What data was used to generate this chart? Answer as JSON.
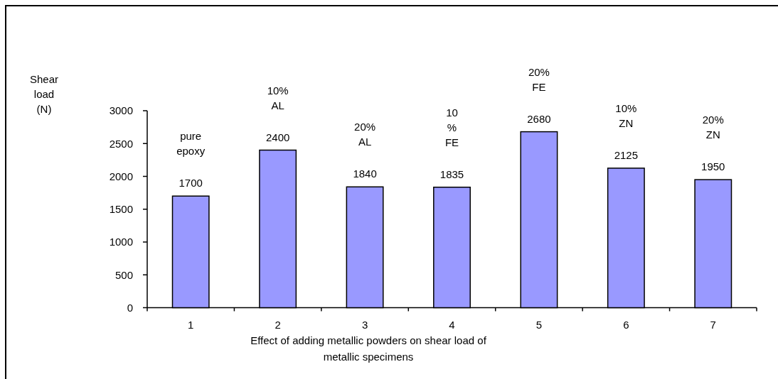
{
  "chart_data": {
    "type": "bar",
    "categories": [
      "1",
      "2",
      "3",
      "4",
      "5",
      "6",
      "7"
    ],
    "values": [
      1700,
      2400,
      1840,
      1835,
      2680,
      2125,
      1950
    ],
    "color": "#9999ff",
    "ylim": [
      0,
      3000
    ],
    "yticks": [
      0,
      500,
      1000,
      1500,
      2000,
      2500,
      3000
    ],
    "ylabel": "Shear load (N)",
    "xlabel": "Effect of adding metallic powders on shear load of metallic specimens",
    "data_labels": true,
    "annotations": [
      "pure\nepoxy",
      "10%\nAL",
      "20%\nAL",
      "10\n%\nFE",
      "20%\nFE",
      "10%\nZN",
      "20%\nZN"
    ]
  }
}
